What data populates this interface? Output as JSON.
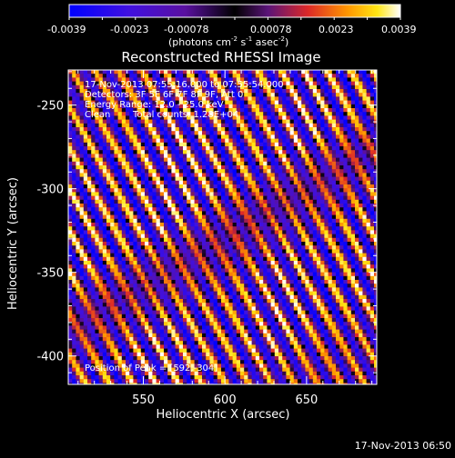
{
  "colorbar": {
    "ticks": [
      "-0.0039",
      "-0.0023",
      "-0.00078",
      "0.00078",
      "0.0023",
      "0.0039"
    ],
    "unit_label": "(photons cm",
    "unit_sup1": "-2",
    "unit_mid": " s",
    "unit_sup2": "-1",
    "unit_end": " asec",
    "unit_sup3": "-2",
    "unit_close": ")"
  },
  "chart_data": {
    "type": "heatmap",
    "title": "Reconstructed RHESSI Image",
    "xlabel": "Heliocentric X (arcsec)",
    "ylabel": "Heliocentric Y (arcsec)",
    "x_ticks": [
      "550",
      "600",
      "650"
    ],
    "y_ticks": [
      "-250",
      "-300",
      "-350",
      "-400"
    ],
    "x_tick_values": [
      550,
      600,
      650
    ],
    "y_tick_values": [
      -250,
      -300,
      -350,
      -400
    ],
    "xlim": [
      504,
      693
    ],
    "ylim": [
      -417,
      -229
    ],
    "zlim": [
      -0.0039,
      0.0039
    ],
    "pattern": {
      "peak": [
        592,
        -304
      ],
      "stripe_dir": [
        0.5,
        -0.866
      ],
      "period": 12.3,
      "dither": 0.22,
      "envelope": [
        [
          -120,
          0.7
        ],
        [
          -80,
          0.85
        ],
        [
          -45,
          1.0
        ],
        [
          0,
          1.0
        ],
        [
          25,
          0.55
        ],
        [
          55,
          0.95
        ],
        [
          90,
          1.0
        ],
        [
          120,
          0.8
        ]
      ]
    },
    "annotations": {
      "line1": "17-Nov-2013 07:55:16.000 to 07:55:54.000",
      "line2": "Detectors: 3F 5F 6F 7F 8F 9F, Att 0",
      "line3": "Energy Range: 12.0 - 25.0 keV",
      "line4_a": "Clean",
      "line4_b": "Total counts: 1.28E+04",
      "peak_label": "Position of Peak = [592,-304]"
    }
  },
  "footer": {
    "timestamp": "17-Nov-2013 06:50"
  }
}
